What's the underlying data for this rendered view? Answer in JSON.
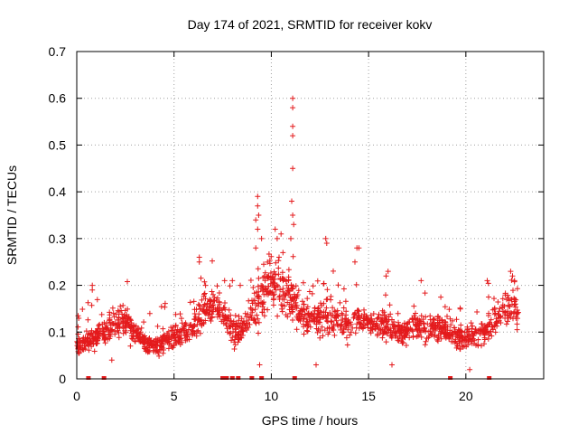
{
  "chart_data": {
    "type": "scatter",
    "title": "Day 174 of 2021, SRMTID for receiver kokv",
    "xlabel": "GPS time / hours",
    "ylabel": "SRMTID / TECUs",
    "xlim": [
      0,
      24
    ],
    "ylim": [
      0,
      0.7
    ],
    "x_ticks": [
      0,
      5,
      10,
      15,
      20
    ],
    "y_ticks": [
      0,
      0.1,
      0.2,
      0.3,
      0.4,
      0.5,
      0.6,
      0.7
    ],
    "x_tick_labels": [
      "0",
      "5",
      "10",
      "15",
      "20"
    ],
    "y_tick_labels": [
      "0",
      "0.1",
      "0.2",
      "0.3",
      "0.4",
      "0.5",
      "0.6",
      "0.7"
    ],
    "grid": true,
    "marker": "plus",
    "color": "#e41a1c",
    "series": [
      {
        "name": "SRMTID",
        "trend": {
          "x": [
            0,
            0.5,
            1.0,
            1.5,
            2.0,
            2.5,
            3.0,
            3.5,
            4.0,
            4.5,
            5.0,
            5.5,
            6.0,
            6.5,
            7.0,
            7.5,
            8.0,
            8.5,
            9.0,
            9.5,
            10.0,
            10.5,
            11.0,
            11.5,
            12.0,
            12.5,
            13.0,
            13.5,
            14.0,
            14.5,
            15.0,
            15.5,
            16.0,
            16.5,
            17.0,
            17.5,
            18.0,
            18.5,
            19.0,
            19.5,
            20.0,
            20.5,
            21.0,
            21.5,
            22.0,
            22.5,
            22.7
          ],
          "y": [
            0.07,
            0.08,
            0.09,
            0.11,
            0.12,
            0.12,
            0.1,
            0.08,
            0.07,
            0.08,
            0.09,
            0.1,
            0.12,
            0.14,
            0.16,
            0.14,
            0.1,
            0.11,
            0.14,
            0.18,
            0.2,
            0.2,
            0.17,
            0.14,
            0.13,
            0.13,
            0.13,
            0.12,
            0.12,
            0.13,
            0.12,
            0.12,
            0.11,
            0.1,
            0.1,
            0.11,
            0.11,
            0.11,
            0.1,
            0.09,
            0.09,
            0.09,
            0.1,
            0.12,
            0.15,
            0.16,
            0.12
          ]
        },
        "peaks": [
          {
            "x": 11.1,
            "y": 0.6
          },
          {
            "x": 11.1,
            "y": 0.58
          },
          {
            "x": 11.1,
            "y": 0.54
          },
          {
            "x": 11.1,
            "y": 0.52
          },
          {
            "x": 11.1,
            "y": 0.45
          },
          {
            "x": 11.05,
            "y": 0.38
          },
          {
            "x": 11.1,
            "y": 0.35
          },
          {
            "x": 11.15,
            "y": 0.33
          },
          {
            "x": 11.0,
            "y": 0.3
          },
          {
            "x": 9.3,
            "y": 0.39
          },
          {
            "x": 9.3,
            "y": 0.37
          },
          {
            "x": 9.35,
            "y": 0.35
          },
          {
            "x": 9.2,
            "y": 0.34
          },
          {
            "x": 9.3,
            "y": 0.32
          },
          {
            "x": 9.5,
            "y": 0.3
          },
          {
            "x": 9.2,
            "y": 0.28
          },
          {
            "x": 10.2,
            "y": 0.32
          },
          {
            "x": 10.3,
            "y": 0.3
          },
          {
            "x": 10.5,
            "y": 0.31
          },
          {
            "x": 10.6,
            "y": 0.27
          },
          {
            "x": 10.4,
            "y": 0.26
          },
          {
            "x": 12.8,
            "y": 0.3
          },
          {
            "x": 12.85,
            "y": 0.29
          },
          {
            "x": 14.4,
            "y": 0.28
          },
          {
            "x": 14.5,
            "y": 0.28
          },
          {
            "x": 14.3,
            "y": 0.25
          },
          {
            "x": 6.3,
            "y": 0.26
          },
          {
            "x": 6.3,
            "y": 0.25
          },
          {
            "x": 16.0,
            "y": 0.23
          },
          {
            "x": 15.9,
            "y": 0.22
          },
          {
            "x": 22.3,
            "y": 0.23
          },
          {
            "x": 22.4,
            "y": 0.22
          },
          {
            "x": 22.5,
            "y": 0.21
          },
          {
            "x": 7.6,
            "y": 0.21
          },
          {
            "x": 8.0,
            "y": 0.21
          },
          {
            "x": 8.4,
            "y": 0.2
          },
          {
            "x": 0.8,
            "y": 0.2
          },
          {
            "x": 0.8,
            "y": 0.19
          },
          {
            "x": 17.7,
            "y": 0.21
          },
          {
            "x": 21.1,
            "y": 0.21
          },
          {
            "x": 20.2,
            "y": 0.02
          },
          {
            "x": 9.4,
            "y": 0.03
          },
          {
            "x": 12.3,
            "y": 0.03
          },
          {
            "x": 16.2,
            "y": 0.03
          },
          {
            "x": 1.8,
            "y": 0.04
          }
        ],
        "zero_markers_x": [
          0.6,
          1.4,
          7.5,
          7.7,
          8.0,
          8.3,
          9.0,
          9.5,
          11.2,
          19.2,
          21.2
        ],
        "n_points": 1700
      }
    ]
  }
}
